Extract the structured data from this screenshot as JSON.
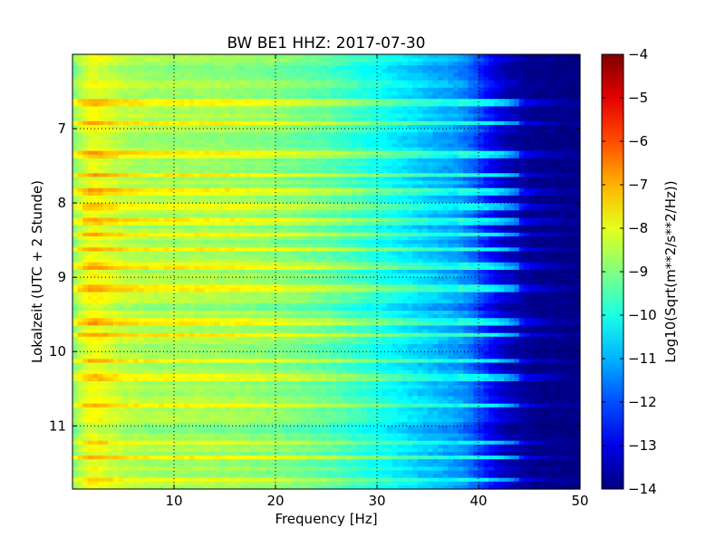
{
  "chart_data": {
    "type": "heatmap",
    "title": "BW BE1 HHZ: 2017-07-30",
    "xlabel": "Frequency [Hz]",
    "ylabel": "Lokalzeit (UTC + 2 Stunde)",
    "xlim": [
      0,
      50
    ],
    "ylim": [
      11.85,
      6.0
    ],
    "y_inverted": true,
    "x_ticks": [
      10,
      20,
      30,
      40,
      50
    ],
    "y_ticks": [
      7,
      8,
      9,
      10,
      11
    ],
    "grid": true,
    "grid_style": "dotted",
    "colormap": "jet",
    "colorbar": {
      "label": "Log10(Sqrt(m**2/s**2/Hz))",
      "range": [
        -14,
        -4
      ],
      "ticks": [
        -4,
        -5,
        -6,
        -7,
        -8,
        -9,
        -10,
        -11,
        -12,
        -13,
        -14
      ],
      "position": "right"
    },
    "spectral_profile": {
      "frequency_hz": [
        0,
        1,
        2,
        3,
        5,
        8,
        12,
        16,
        20,
        25,
        28,
        30,
        32,
        34,
        36,
        38,
        39,
        40,
        41,
        42,
        43,
        44,
        45,
        46,
        50
      ],
      "log10_amplitude": [
        -9.0,
        -8.2,
        -7.8,
        -8.0,
        -8.4,
        -8.6,
        -8.6,
        -8.7,
        -8.9,
        -9.3,
        -9.7,
        -10.0,
        -10.3,
        -10.6,
        -10.9,
        -11.2,
        -11.5,
        -12.0,
        -12.6,
        -13.1,
        -13.4,
        -13.6,
        -13.8,
        -13.9,
        -13.95
      ]
    },
    "noisy_time_bands_hours": [
      6.65,
      6.92,
      7.35,
      7.62,
      7.85,
      8.05,
      8.25,
      8.42,
      8.62,
      8.85,
      9.15,
      9.6,
      9.78,
      10.12,
      10.35,
      10.72,
      11.22,
      11.42,
      11.72
    ],
    "quiet_time_bands_hours": [
      6.2,
      7.1,
      8.7,
      9.4,
      10.55,
      11.05
    ]
  }
}
